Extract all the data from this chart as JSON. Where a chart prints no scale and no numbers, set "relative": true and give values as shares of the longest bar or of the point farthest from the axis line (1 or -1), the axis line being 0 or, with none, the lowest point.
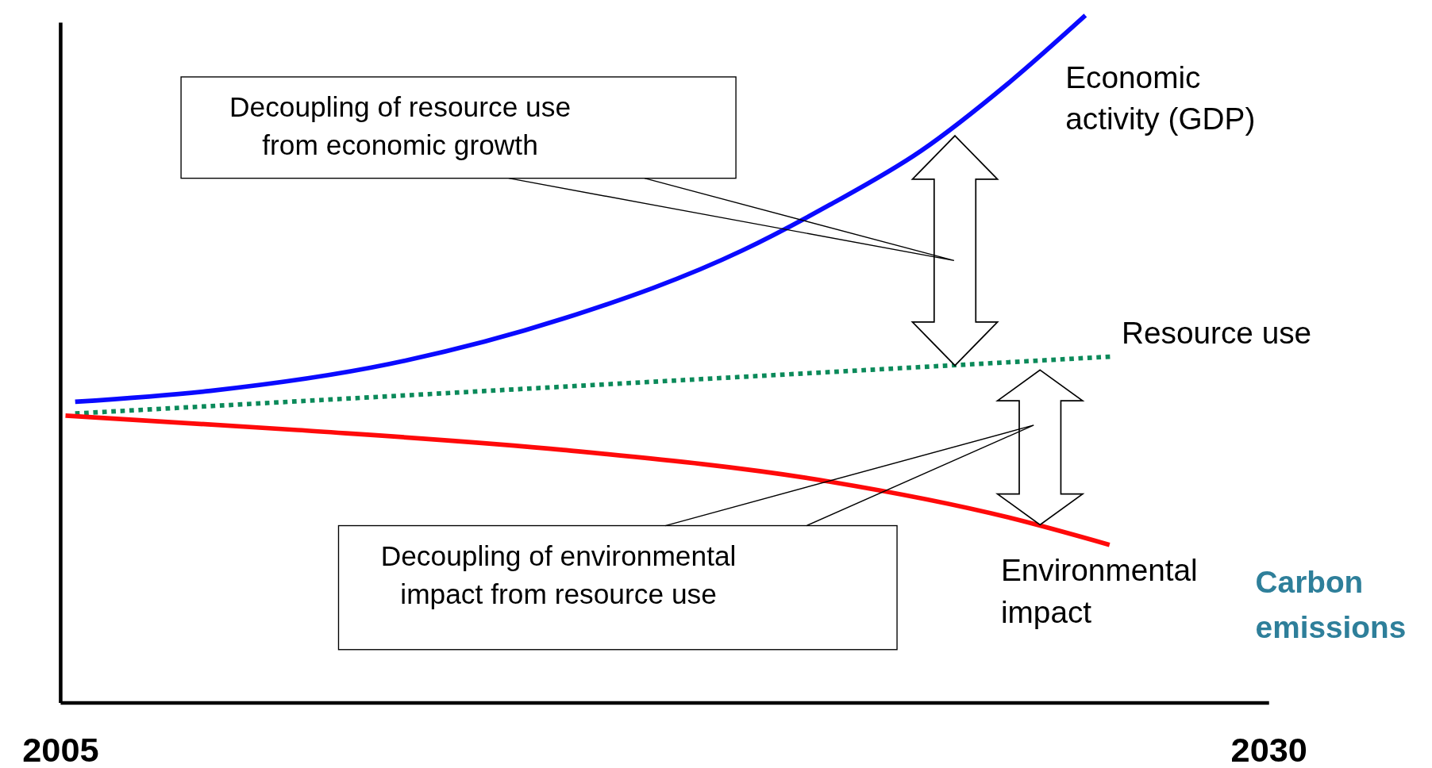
{
  "chart_data": {
    "type": "line",
    "relative": true,
    "xlim": [
      2005,
      2030
    ],
    "xticks": [
      2005,
      2030
    ],
    "series": [
      {
        "name": "Economic activity (GDP)",
        "color": "#0a0aff",
        "x": [
          2005.3,
          2008.1,
          2011.8,
          2015.4,
          2019.1,
          2020.9,
          2022.8,
          2024.6,
          2026.2
        ],
        "values": [
          0.438,
          0.454,
          0.493,
          0.559,
          0.658,
          0.724,
          0.803,
          0.901,
          1.0
        ]
      },
      {
        "name": "Resource use",
        "color": "#0b8a5a",
        "line_style": "dotted",
        "x": [
          2005.3,
          2026.8
        ],
        "values": [
          0.421,
          0.504
        ]
      },
      {
        "name": "Environmental impact",
        "color": "#ff0a0a",
        "x": [
          2005.1,
          2009.9,
          2015.4,
          2020.9,
          2024.6,
          2026.7
        ],
        "values": [
          0.418,
          0.397,
          0.368,
          0.322,
          0.27,
          0.23
        ]
      }
    ],
    "annotations": [
      "Decoupling of resource use from economic growth",
      "Decoupling of environmental impact from resource use",
      "Carbon emissions"
    ]
  }
}
